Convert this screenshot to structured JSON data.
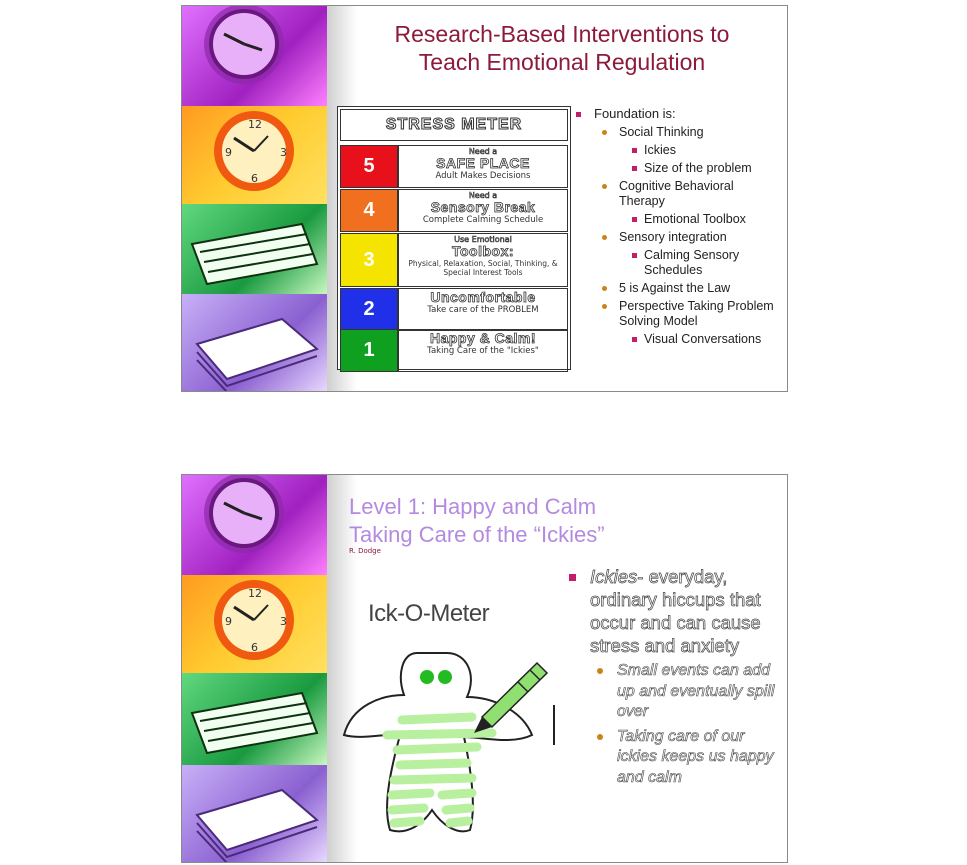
{
  "slide1": {
    "title": "Research-Based Interventions to Teach Emotional Regulation",
    "meter": {
      "heading": "STRESS METER",
      "rows": [
        {
          "level": "5",
          "pre": "Need a",
          "main": "SAFE PLACE",
          "sub": "Adult Makes Decisions",
          "color": "#e8101a"
        },
        {
          "level": "4",
          "pre": "Need a",
          "main": "Sensory Break",
          "sub": "Complete Calming Schedule",
          "color": "#f07020"
        },
        {
          "level": "3",
          "pre": "Use Emotional",
          "main": "Toolbox:",
          "sub": "Physical, Relaxation, Social, Thinking, & Special Interest Tools",
          "color": "#f5e400"
        },
        {
          "level": "2",
          "pre": "",
          "main": "Uncomfortable",
          "sub": "Take care of the PROBLEM",
          "color": "#2030e8"
        },
        {
          "level": "1",
          "pre": "",
          "main": "Happy & Calm!",
          "sub": "Taking Care of the \"Ickies\"",
          "color": "#10a020"
        }
      ]
    },
    "outline": [
      {
        "level": 1,
        "text": "Foundation is:"
      },
      {
        "level": 2,
        "text": "Social Thinking"
      },
      {
        "level": 3,
        "text": "Ickies"
      },
      {
        "level": 3,
        "text": "Size of the problem"
      },
      {
        "level": 2,
        "text": "Cognitive Behavioral Therapy"
      },
      {
        "level": 3,
        "text": "Emotional Toolbox"
      },
      {
        "level": 2,
        "text": "Sensory integration"
      },
      {
        "level": 3,
        "text": "Calming Sensory Schedules"
      },
      {
        "level": 2,
        "text": "5 is Against the Law"
      },
      {
        "level": 2,
        "text": "Perspective Taking Problem Solving Model"
      },
      {
        "level": 3,
        "text": "Visual Conversations"
      }
    ]
  },
  "slide2": {
    "title_line1": "Level 1:  Happy and Calm",
    "title_line2": "Taking Care of the “Ickies”",
    "credit": "R. Dodge",
    "drawing_title": "Ick-O-Meter",
    "bullet_term": "Ickies",
    "bullet_rest": "- everyday, ordinary hiccups that occur and can cause stress and anxiety",
    "sub_bullets": [
      "Small events can add up and eventually spill over",
      "Taking care of our ickies keeps us happy and calm"
    ]
  },
  "colors": {
    "title_dark": "#8b1a3b",
    "title_lavender": "#b48adf",
    "bullet_square": "#c41e6a",
    "bullet_dot": "#c8841a",
    "strip_top": "#c23ad6",
    "strip_clock": "#f4b21a",
    "strip_papers": "#2cb44a",
    "strip_books": "#9a7ad8"
  }
}
